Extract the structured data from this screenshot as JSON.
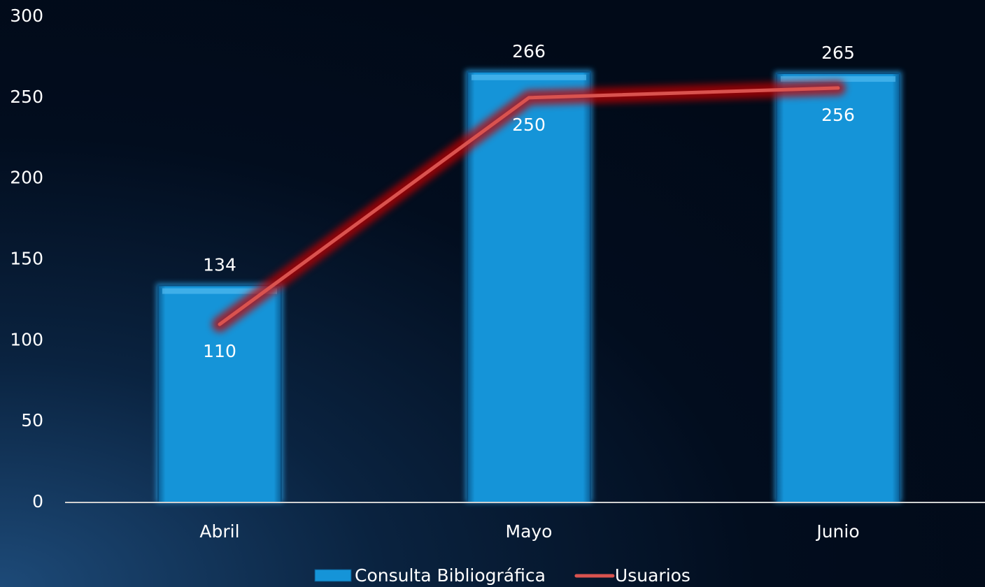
{
  "chart_data": {
    "type": "bar",
    "categories": [
      "Abril",
      "Mayo",
      "Junio"
    ],
    "series": [
      {
        "name": "Consulta Bibliográfica",
        "type": "bar",
        "color": "#1594d8",
        "values": [
          134,
          266,
          265
        ]
      },
      {
        "name": "Usuarios",
        "type": "line",
        "color": "#d9534f",
        "values": [
          110,
          250,
          256
        ]
      }
    ],
    "ylim": [
      0,
      300
    ],
    "yticks": [
      0,
      50,
      100,
      150,
      200,
      250,
      300
    ],
    "grid": false,
    "legend": "bottom"
  }
}
